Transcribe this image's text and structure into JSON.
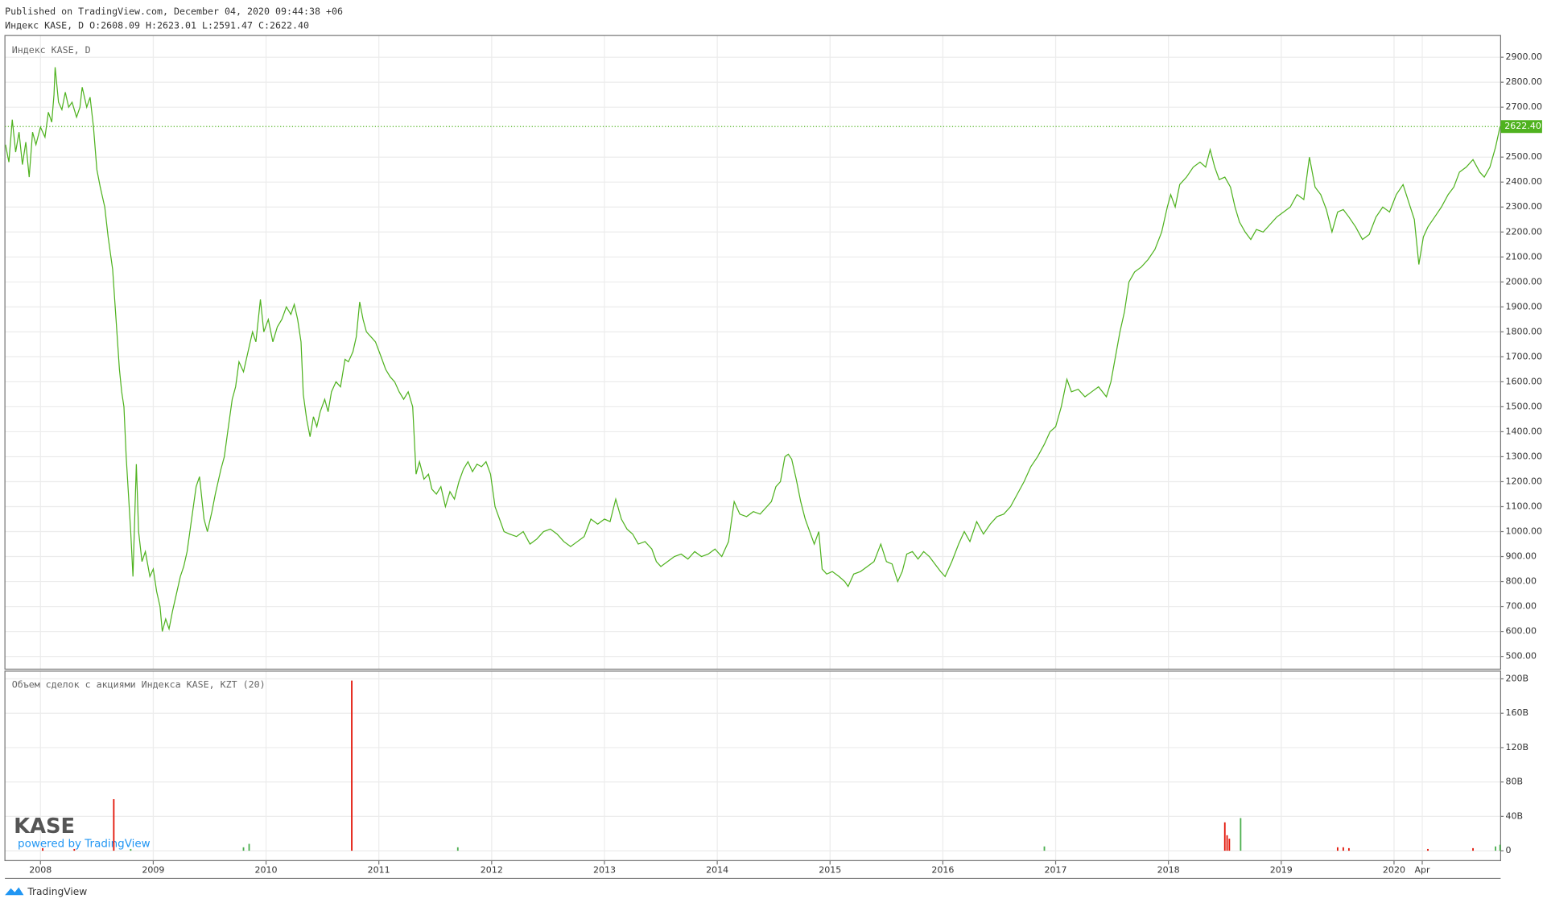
{
  "header": {
    "line1": "Published on TradingView.com, December 04, 2020 09:44:38 +06",
    "line2": "Индекс KASE, D O:2608.09 H:2623.01 L:2591.47 C:2622.40"
  },
  "watermark": {
    "logo": "KASE",
    "powered": "powered by TradingView"
  },
  "footer": "TradingView",
  "chart_data": [
    {
      "type": "line",
      "title": "Индекс KASE, D",
      "color": "#4fb21f",
      "grid": true,
      "xlim": [
        2007.685,
        2020.945
      ],
      "ylim": [
        449,
        2987
      ],
      "xticks": [
        {
          "value": 2008,
          "label": "2008"
        },
        {
          "value": 2009,
          "label": "2009"
        },
        {
          "value": 2010,
          "label": "2010"
        },
        {
          "value": 2011,
          "label": "2011"
        },
        {
          "value": 2012,
          "label": "2012"
        },
        {
          "value": 2013,
          "label": "2013"
        },
        {
          "value": 2014,
          "label": "2014"
        },
        {
          "value": 2015,
          "label": "2015"
        },
        {
          "value": 2016,
          "label": "2016"
        },
        {
          "value": 2017,
          "label": "2017"
        },
        {
          "value": 2018,
          "label": "2018"
        },
        {
          "value": 2019,
          "label": "2019"
        },
        {
          "value": 2020,
          "label": "2020"
        },
        {
          "value": 2020.25,
          "label": "Apr"
        }
      ],
      "yticks": [
        {
          "value": 500,
          "label": "500.00"
        },
        {
          "value": 600,
          "label": "600.00"
        },
        {
          "value": 700,
          "label": "700.00"
        },
        {
          "value": 800,
          "label": "800.00"
        },
        {
          "value": 900,
          "label": "900.00"
        },
        {
          "value": 1000,
          "label": "1000.00"
        },
        {
          "value": 1100,
          "label": "1100.00"
        },
        {
          "value": 1200,
          "label": "1200.00"
        },
        {
          "value": 1300,
          "label": "1300.00"
        },
        {
          "value": 1400,
          "label": "1400.00"
        },
        {
          "value": 1500,
          "label": "1500.00"
        },
        {
          "value": 1600,
          "label": "1600.00"
        },
        {
          "value": 1700,
          "label": "1700.00"
        },
        {
          "value": 1800,
          "label": "1800.00"
        },
        {
          "value": 1900,
          "label": "1900.00"
        },
        {
          "value": 2000,
          "label": "2000.00"
        },
        {
          "value": 2100,
          "label": "2100.00"
        },
        {
          "value": 2200,
          "label": "2200.00"
        },
        {
          "value": 2300,
          "label": "2300.00"
        },
        {
          "value": 2400,
          "label": "2400.00"
        },
        {
          "value": 2500,
          "label": "2500.00"
        },
        {
          "value": 2700,
          "label": "2700.00"
        },
        {
          "value": 2800,
          "label": "2800.00"
        },
        {
          "value": 2900,
          "label": "2900.00"
        }
      ],
      "last_price": {
        "value": 2622.4,
        "label": "2622.40"
      },
      "x": [
        2007.69,
        2007.72,
        2007.75,
        2007.78,
        2007.81,
        2007.84,
        2007.87,
        2007.9,
        2007.93,
        2007.96,
        2008.0,
        2008.04,
        2008.07,
        2008.1,
        2008.12,
        2008.13,
        2008.16,
        2008.19,
        2008.22,
        2008.25,
        2008.28,
        2008.32,
        2008.35,
        2008.37,
        2008.41,
        2008.44,
        2008.47,
        2008.5,
        2008.53,
        2008.57,
        2008.6,
        2008.64,
        2008.67,
        2008.7,
        2008.72,
        2008.74,
        2008.76,
        2008.78,
        2008.8,
        2008.82,
        2008.85,
        2008.87,
        2008.9,
        2008.93,
        2008.97,
        2009.0,
        2009.03,
        2009.06,
        2009.08,
        2009.11,
        2009.14,
        2009.17,
        2009.2,
        2009.24,
        2009.27,
        2009.3,
        2009.34,
        2009.38,
        2009.41,
        2009.45,
        2009.48,
        2009.52,
        2009.55,
        2009.6,
        2009.63,
        2009.66,
        2009.7,
        2009.73,
        2009.76,
        2009.8,
        2009.84,
        2009.88,
        2009.91,
        2009.95,
        2009.98,
        2010.02,
        2010.06,
        2010.1,
        2010.14,
        2010.18,
        2010.22,
        2010.25,
        2010.28,
        2010.31,
        2010.33,
        2010.36,
        2010.39,
        2010.42,
        2010.45,
        2010.48,
        2010.52,
        2010.55,
        2010.58,
        2010.62,
        2010.66,
        2010.7,
        2010.73,
        2010.77,
        2010.8,
        2010.83,
        2010.86,
        2010.89,
        2010.93,
        2010.97,
        2011.02,
        2011.06,
        2011.1,
        2011.14,
        2011.18,
        2011.22,
        2011.26,
        2011.3,
        2011.33,
        2011.36,
        2011.4,
        2011.44,
        2011.47,
        2011.51,
        2011.55,
        2011.59,
        2011.63,
        2011.67,
        2011.71,
        2011.75,
        2011.79,
        2011.83,
        2011.87,
        2011.91,
        2011.95,
        2011.99,
        2012.03,
        2012.07,
        2012.11,
        2012.16,
        2012.22,
        2012.28,
        2012.34,
        2012.4,
        2012.46,
        2012.52,
        2012.58,
        2012.64,
        2012.7,
        2012.76,
        2012.82,
        2012.88,
        2012.94,
        2013.0,
        2013.05,
        2013.1,
        2013.15,
        2013.2,
        2013.25,
        2013.3,
        2013.36,
        2013.42,
        2013.46,
        2013.5,
        2013.56,
        2013.62,
        2013.68,
        2013.74,
        2013.8,
        2013.86,
        2013.92,
        2013.98,
        2014.04,
        2014.1,
        2014.15,
        2014.2,
        2014.26,
        2014.32,
        2014.38,
        2014.44,
        2014.48,
        2014.52,
        2014.56,
        2014.6,
        2014.63,
        2014.66,
        2014.7,
        2014.74,
        2014.78,
        2014.82,
        2014.86,
        2014.9,
        2014.93,
        2014.97,
        2015.02,
        2015.08,
        2015.13,
        2015.16,
        2015.21,
        2015.27,
        2015.33,
        2015.39,
        2015.45,
        2015.5,
        2015.55,
        2015.6,
        2015.64,
        2015.68,
        2015.73,
        2015.78,
        2015.83,
        2015.88,
        2015.93,
        2015.98,
        2016.02,
        2016.08,
        2016.14,
        2016.19,
        2016.24,
        2016.3,
        2016.36,
        2016.42,
        2016.48,
        2016.54,
        2016.6,
        2016.66,
        2016.72,
        2016.78,
        2016.84,
        2016.9,
        2016.95,
        2017.0,
        2017.05,
        2017.1,
        2017.14,
        2017.2,
        2017.26,
        2017.32,
        2017.38,
        2017.45,
        2017.49,
        2017.53,
        2017.57,
        2017.61,
        2017.65,
        2017.7,
        2017.76,
        2017.82,
        2017.88,
        2017.94,
        2017.99,
        2018.02,
        2018.06,
        2018.1,
        2018.16,
        2018.22,
        2018.28,
        2018.33,
        2018.37,
        2018.41,
        2018.45,
        2018.5,
        2018.55,
        2018.59,
        2018.63,
        2018.68,
        2018.73,
        2018.78,
        2018.84,
        2018.9,
        2018.96,
        2019.02,
        2019.08,
        2019.14,
        2019.2,
        2019.25,
        2019.3,
        2019.35,
        2019.4,
        2019.45,
        2019.5,
        2019.55,
        2019.6,
        2019.66,
        2019.72,
        2019.78,
        2019.84,
        2019.9,
        2019.96,
        2020.02,
        2020.08,
        2020.13,
        2020.18,
        2020.22,
        2020.26,
        2020.3,
        2020.36,
        2020.42,
        2020.48,
        2020.53,
        2020.58,
        2020.64,
        2020.7,
        2020.76,
        2020.8,
        2020.85,
        2020.9,
        2020.94
      ],
      "values": [
        2550,
        2480,
        2650,
        2520,
        2600,
        2470,
        2560,
        2420,
        2600,
        2550,
        2620,
        2580,
        2680,
        2640,
        2750,
        2860,
        2720,
        2690,
        2760,
        2700,
        2720,
        2660,
        2700,
        2780,
        2700,
        2740,
        2620,
        2450,
        2380,
        2300,
        2180,
        2050,
        1850,
        1650,
        1560,
        1500,
        1300,
        1150,
        1000,
        820,
        1270,
        1000,
        880,
        920,
        820,
        850,
        760,
        700,
        600,
        650,
        610,
        680,
        740,
        820,
        860,
        920,
        1050,
        1180,
        1220,
        1050,
        1000,
        1080,
        1150,
        1250,
        1300,
        1400,
        1530,
        1580,
        1680,
        1640,
        1720,
        1800,
        1760,
        1930,
        1800,
        1850,
        1760,
        1820,
        1850,
        1900,
        1870,
        1910,
        1850,
        1760,
        1550,
        1450,
        1380,
        1460,
        1420,
        1480,
        1530,
        1480,
        1560,
        1600,
        1580,
        1690,
        1680,
        1720,
        1780,
        1920,
        1850,
        1800,
        1780,
        1760,
        1700,
        1650,
        1620,
        1600,
        1560,
        1530,
        1560,
        1500,
        1230,
        1280,
        1210,
        1230,
        1170,
        1150,
        1180,
        1100,
        1160,
        1130,
        1200,
        1250,
        1280,
        1240,
        1270,
        1260,
        1280,
        1230,
        1100,
        1050,
        1000,
        990,
        980,
        1000,
        950,
        970,
        1000,
        1010,
        990,
        960,
        940,
        960,
        980,
        1050,
        1030,
        1050,
        1040,
        1130,
        1050,
        1010,
        990,
        950,
        960,
        930,
        880,
        860,
        880,
        900,
        910,
        890,
        920,
        900,
        910,
        930,
        900,
        960,
        1120,
        1070,
        1060,
        1080,
        1070,
        1100,
        1120,
        1180,
        1200,
        1300,
        1310,
        1290,
        1210,
        1120,
        1050,
        1000,
        950,
        1000,
        850,
        830,
        840,
        820,
        800,
        780,
        830,
        840,
        860,
        880,
        950,
        880,
        870,
        800,
        840,
        910,
        920,
        890,
        920,
        900,
        870,
        840,
        820,
        880,
        950,
        1000,
        960,
        1040,
        990,
        1030,
        1060,
        1070,
        1100,
        1150,
        1200,
        1260,
        1300,
        1350,
        1400,
        1420,
        1500,
        1610,
        1560,
        1570,
        1540,
        1560,
        1580,
        1540,
        1600,
        1700,
        1800,
        1880,
        2000,
        2040,
        2060,
        2090,
        2130,
        2200,
        2300,
        2350,
        2300,
        2390,
        2420,
        2460,
        2480,
        2460,
        2530,
        2460,
        2410,
        2420,
        2380,
        2300,
        2240,
        2200,
        2170,
        2210,
        2200,
        2230,
        2260,
        2280,
        2300,
        2350,
        2330,
        2500,
        2380,
        2350,
        2290,
        2200,
        2280,
        2290,
        2260,
        2220,
        2170,
        2190,
        2260,
        2300,
        2280,
        2350,
        2390,
        2320,
        2250,
        2070,
        2180,
        2220,
        2260,
        2300,
        2350,
        2380,
        2440,
        2460,
        2490,
        2440,
        2420,
        2460,
        2540,
        2622.4
      ]
    },
    {
      "type": "bar",
      "title": "Объем сделок с акциями Индекса KASE, KZT (20)",
      "grid": true,
      "xlim": [
        2007.685,
        2020.945
      ],
      "ylim": [
        -11.5,
        209
      ],
      "yticks": [
        0,
        {
          "value": 40,
          "label": "40B"
        },
        {
          "value": 80,
          "label": "80B"
        },
        {
          "value": 120,
          "label": "120B"
        },
        {
          "value": 160,
          "label": "160B"
        },
        {
          "value": 200,
          "label": "200B"
        }
      ],
      "x": [
        2008.02,
        2008.3,
        2008.65,
        2008.8,
        2009.8,
        2009.85,
        2010.76,
        2011.7,
        2016.9,
        2018.5,
        2018.52,
        2018.54,
        2018.64,
        2019.5,
        2019.55,
        2019.6,
        2020.3,
        2020.7,
        2020.9,
        2020.94
      ],
      "values": [
        3,
        2,
        60,
        2,
        4,
        8,
        198,
        4,
        5,
        33,
        18,
        14,
        38,
        4,
        4,
        3,
        2,
        3,
        5,
        7
      ],
      "colors": [
        "#e3170a",
        "#e3170a",
        "#e3170a",
        "#4caf50",
        "#4caf50",
        "#4caf50",
        "#e3170a",
        "#4caf50",
        "#4caf50",
        "#e3170a",
        "#e3170a",
        "#e3170a",
        "#4caf50",
        "#e3170a",
        "#e3170a",
        "#e3170a",
        "#e3170a",
        "#e3170a",
        "#4caf50",
        "#4caf50"
      ]
    }
  ]
}
